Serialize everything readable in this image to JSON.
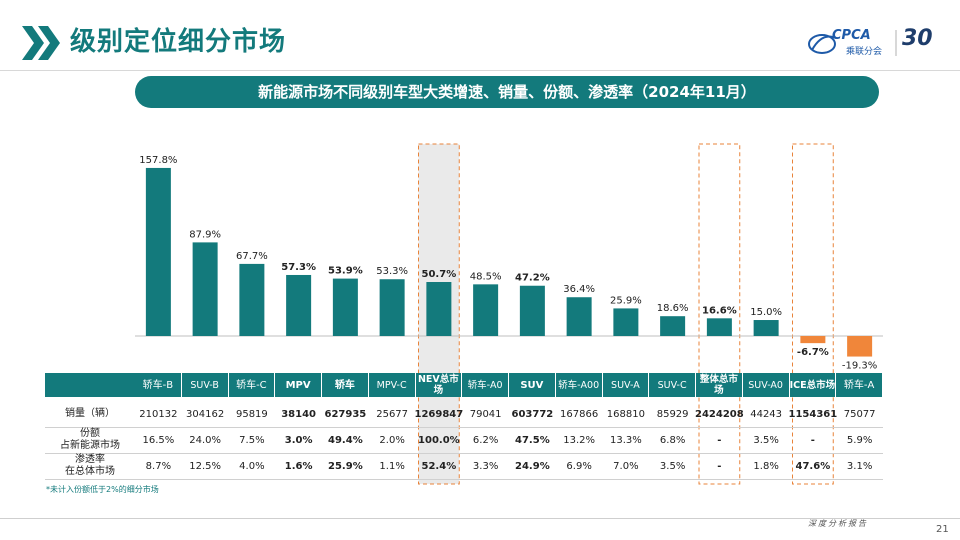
{
  "header": {
    "title": "级别定位细分市场",
    "subtitle": "新能源市场不同级别车型大类增速、销量、份额、渗透率（2024年11月）",
    "logo_text": "CPCA",
    "logo_cn": "乘联分会",
    "anniv": "30"
  },
  "colors": {
    "teal": "#137a7c",
    "orange": "#f0863a",
    "highlight": "#e8833a",
    "bold_bar": "#137a7c"
  },
  "chart_data": {
    "type": "bar",
    "categories": [
      "轿车-B",
      "SUV-B",
      "轿车-C",
      "MPV",
      "轿车",
      "MPV-C",
      "NEV总市场",
      "轿车-A0",
      "SUV",
      "轿车-A00",
      "SUV-A",
      "SUV-C",
      "整体总市场",
      "SUV-A0",
      "ICE总市场",
      "轿车-A"
    ],
    "values": [
      157.8,
      87.9,
      67.7,
      57.3,
      53.9,
      53.3,
      50.7,
      48.5,
      47.2,
      36.4,
      25.9,
      18.6,
      16.6,
      15.0,
      -6.7,
      -19.3
    ],
    "labels": [
      "157.8%",
      "87.9%",
      "67.7%",
      "57.3%",
      "53.9%",
      "53.3%",
      "50.7%",
      "48.5%",
      "47.2%",
      "36.4%",
      "25.9%",
      "18.6%",
      "16.6%",
      "15.0%",
      "-6.7%",
      "-19.3%"
    ],
    "bold": [
      false,
      false,
      false,
      true,
      true,
      false,
      true,
      false,
      true,
      false,
      false,
      false,
      true,
      false,
      true,
      false
    ],
    "highlight": [
      6,
      12,
      14
    ],
    "ylim": [
      -25,
      165
    ]
  },
  "table": {
    "headers": [
      "轿车-B",
      "SUV-B",
      "轿车-C",
      "MPV",
      "轿车",
      "MPV-C",
      "NEV总市场",
      "轿车-A0",
      "SUV",
      "轿车-A00",
      "SUV-A",
      "SUV-C",
      "整体总市场",
      "SUV-A0",
      "ICE总市场",
      "轿车-A"
    ],
    "rows": [
      {
        "label": "销量（辆）",
        "values": [
          "210132",
          "304162",
          "95819",
          "38140",
          "627935",
          "25677",
          "1269847",
          "79041",
          "603772",
          "167866",
          "168810",
          "85929",
          "2424208",
          "44243",
          "1154361",
          "75077"
        ]
      },
      {
        "label": "份额 占新能源市场",
        "values": [
          "16.5%",
          "24.0%",
          "7.5%",
          "3.0%",
          "49.4%",
          "2.0%",
          "100.0%",
          "6.2%",
          "47.5%",
          "13.2%",
          "13.3%",
          "6.8%",
          "-",
          "3.5%",
          "-",
          "5.9%"
        ]
      },
      {
        "label": "渗透率 在总体市场",
        "values": [
          "8.7%",
          "12.5%",
          "4.0%",
          "1.6%",
          "25.9%",
          "1.1%",
          "52.4%",
          "3.3%",
          "24.9%",
          "6.9%",
          "7.0%",
          "3.5%",
          "-",
          "1.8%",
          "47.6%",
          "3.1%"
        ]
      }
    ]
  },
  "footnote": "*未计入份额低于2%的细分市场",
  "footer": {
    "text": "深度分析报告",
    "page": "21"
  }
}
